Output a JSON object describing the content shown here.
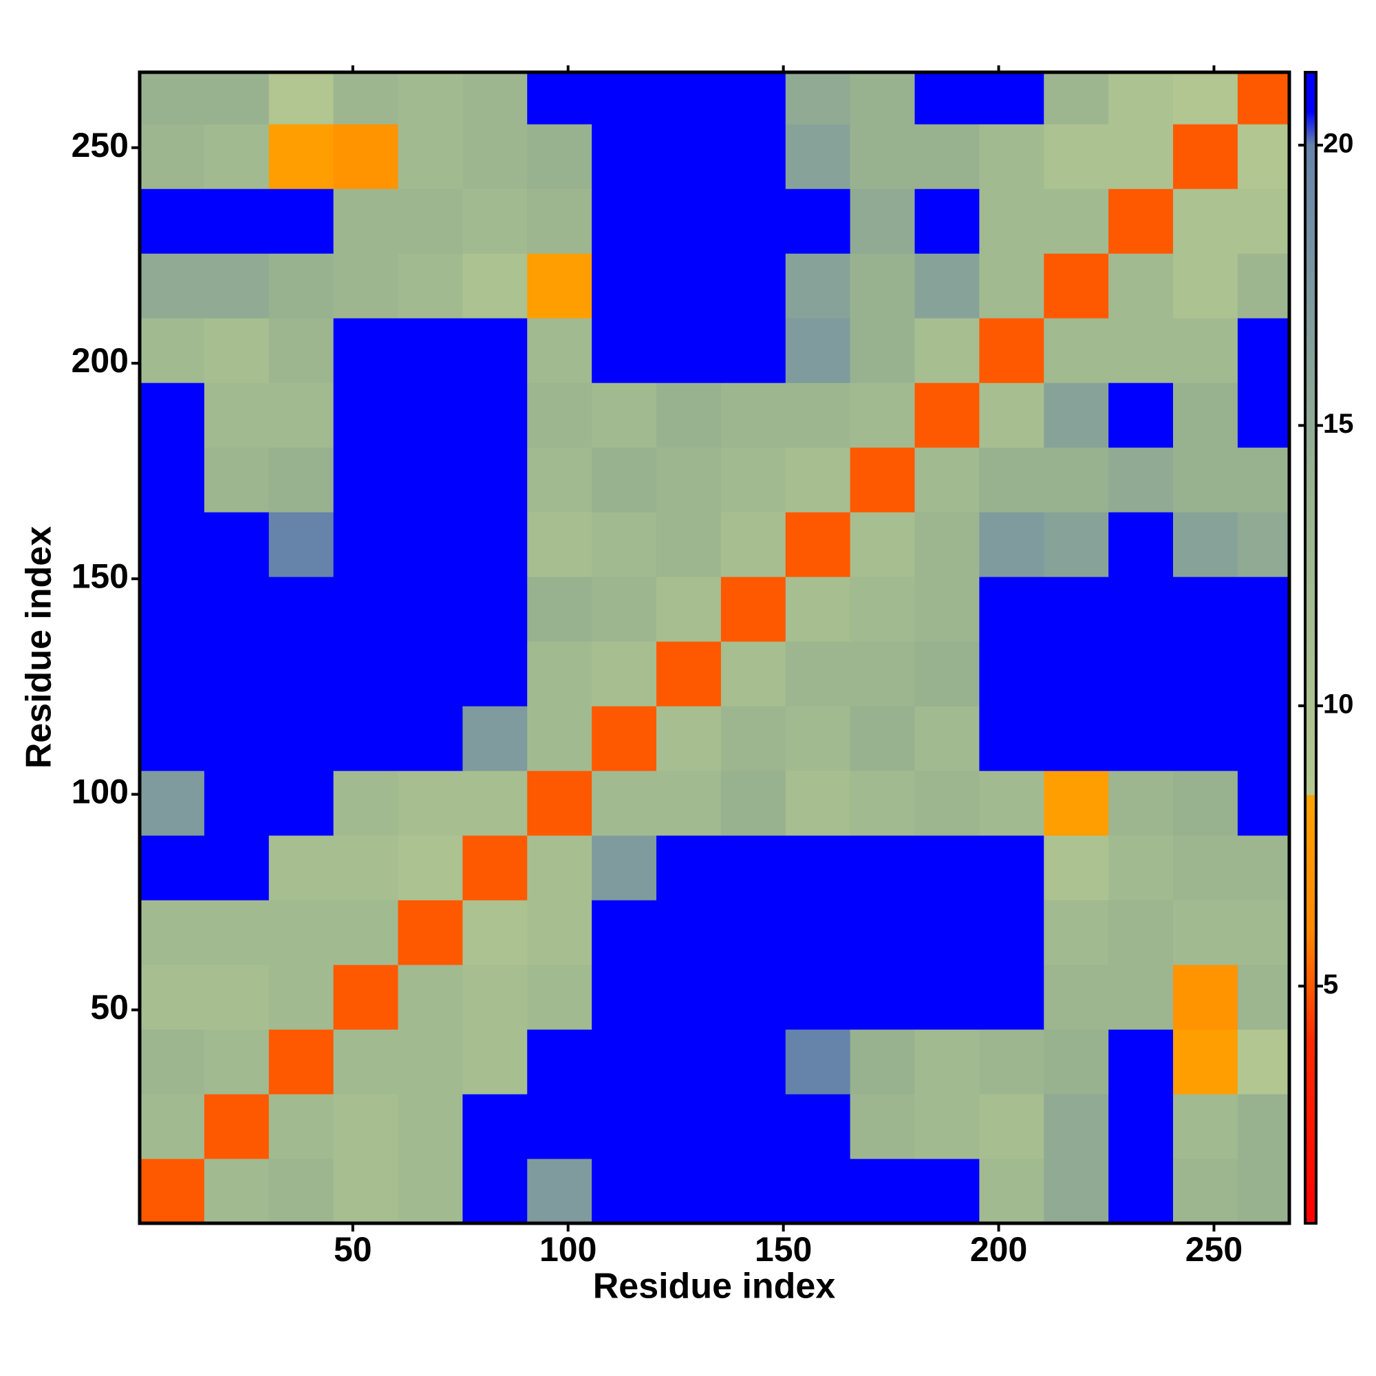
{
  "chart_data": {
    "type": "heatmap",
    "xlabel": "Residue index",
    "ylabel": "Residue index",
    "x": [
      8,
      23,
      38,
      53,
      68,
      83,
      98,
      113,
      128,
      143,
      158,
      173,
      188,
      203,
      218,
      233,
      248,
      263
    ],
    "y": [
      8,
      23,
      38,
      53,
      68,
      83,
      98,
      113,
      128,
      143,
      158,
      173,
      188,
      203,
      218,
      233,
      248,
      263
    ],
    "z": [
      [
        5,
        12,
        13,
        11,
        12,
        21,
        17,
        21,
        21,
        21,
        21,
        21,
        21,
        12,
        15,
        21,
        13,
        14
      ],
      [
        12,
        5,
        12,
        11,
        12,
        21,
        21,
        21,
        21,
        21,
        21,
        13,
        12,
        11,
        15,
        21,
        12,
        14
      ],
      [
        13,
        12,
        5,
        12,
        12,
        11,
        21,
        21,
        21,
        21,
        20,
        14,
        12,
        13,
        14,
        21,
        8,
        9
      ],
      [
        11,
        11,
        12,
        5,
        12,
        11,
        12,
        21,
        21,
        21,
        21,
        21,
        21,
        21,
        13,
        13,
        7,
        13
      ],
      [
        12,
        12,
        12,
        12,
        5,
        10,
        11,
        21,
        21,
        21,
        21,
        21,
        21,
        21,
        12,
        13,
        12,
        12
      ],
      [
        21,
        21,
        11,
        11,
        10,
        5,
        11,
        17,
        21,
        21,
        21,
        21,
        21,
        21,
        10,
        12,
        13,
        13
      ],
      [
        17,
        21,
        21,
        12,
        11,
        11,
        5,
        12,
        12,
        14,
        11,
        12,
        13,
        12,
        8,
        13,
        14,
        21
      ],
      [
        21,
        21,
        21,
        21,
        21,
        17,
        12,
        5,
        11,
        13,
        12,
        14,
        12,
        21,
        21,
        21,
        21,
        21
      ],
      [
        21,
        21,
        21,
        21,
        21,
        21,
        12,
        11,
        5,
        11,
        13,
        13,
        14,
        21,
        21,
        21,
        21,
        21
      ],
      [
        21,
        21,
        21,
        21,
        21,
        21,
        14,
        13,
        11,
        5,
        11,
        12,
        13,
        21,
        21,
        21,
        21,
        21
      ],
      [
        21,
        21,
        20,
        21,
        21,
        21,
        11,
        12,
        13,
        11,
        5,
        11,
        13,
        17,
        16,
        21,
        16,
        15
      ],
      [
        21,
        13,
        14,
        21,
        21,
        21,
        12,
        14,
        13,
        12,
        11,
        5,
        12,
        14,
        14,
        15,
        14,
        14
      ],
      [
        21,
        12,
        12,
        21,
        21,
        21,
        13,
        12,
        14,
        13,
        13,
        12,
        5,
        11,
        16,
        21,
        14,
        21
      ],
      [
        12,
        11,
        13,
        21,
        21,
        21,
        12,
        21,
        21,
        21,
        17,
        14,
        11,
        5,
        12,
        12,
        12,
        21
      ],
      [
        15,
        15,
        14,
        13,
        12,
        10,
        8,
        21,
        21,
        21,
        16,
        14,
        16,
        12,
        5,
        12,
        10,
        13
      ],
      [
        21,
        21,
        21,
        13,
        13,
        12,
        13,
        21,
        21,
        21,
        21,
        15,
        21,
        12,
        12,
        5,
        10,
        10
      ],
      [
        13,
        12,
        8,
        7,
        12,
        13,
        14,
        21,
        21,
        21,
        16,
        14,
        14,
        12,
        10,
        10,
        5,
        9
      ],
      [
        14,
        14,
        9,
        13,
        12,
        13,
        21,
        21,
        21,
        21,
        15,
        14,
        21,
        21,
        13,
        10,
        9,
        5
      ]
    ],
    "xlim": [
      0.5,
      267.5
    ],
    "ylim": [
      0.5,
      267.5
    ],
    "xticks": [
      50,
      100,
      150,
      200,
      250
    ],
    "yticks": [
      50,
      100,
      150,
      200,
      250
    ],
    "zlim": [
      0.77,
      21.3
    ],
    "zticks": [
      5,
      10,
      15,
      20
    ],
    "colorscale": [
      [
        0.77,
        "#ff0000"
      ],
      [
        4,
        "#ff2a00"
      ],
      [
        6,
        "#ff8800"
      ],
      [
        8.4,
        "#ffa200"
      ],
      [
        8.41,
        "#b4c890"
      ],
      [
        14,
        "#98b290"
      ],
      [
        20,
        "#6684aa"
      ],
      [
        20.6,
        "#0000ff"
      ],
      [
        21.3,
        "#0000ff"
      ]
    ]
  }
}
